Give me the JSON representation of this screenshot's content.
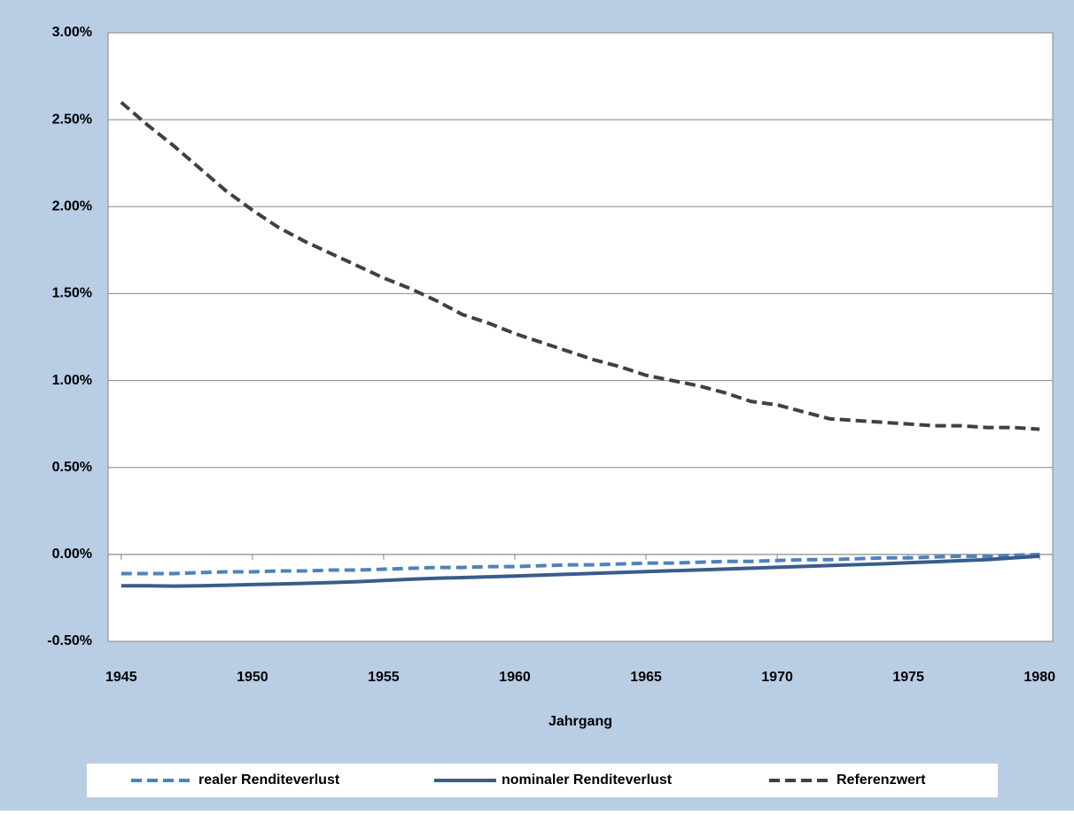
{
  "chart_data": {
    "type": "line",
    "x_label": "Jahrgang",
    "x": [
      1945,
      1946,
      1947,
      1948,
      1949,
      1950,
      1951,
      1952,
      1953,
      1954,
      1955,
      1956,
      1957,
      1958,
      1959,
      1960,
      1961,
      1962,
      1963,
      1964,
      1965,
      1966,
      1967,
      1968,
      1969,
      1970,
      1971,
      1972,
      1973,
      1974,
      1975,
      1976,
      1977,
      1978,
      1979,
      1980
    ],
    "xlim": [
      1944.5,
      1980.5
    ],
    "xticks": [
      1945,
      1950,
      1955,
      1960,
      1965,
      1970,
      1975,
      1980
    ],
    "ylim": [
      -0.5,
      3
    ],
    "yticks": [
      {
        "value": -0.5,
        "label": "-0.50%"
      },
      {
        "value": 0,
        "label": "0.00%"
      },
      {
        "value": 0.5,
        "label": "0.50%"
      },
      {
        "value": 1,
        "label": "1.00%"
      },
      {
        "value": 1.5,
        "label": "1.50%"
      },
      {
        "value": 2,
        "label": "2.00%"
      },
      {
        "value": 2.5,
        "label": "2.50%"
      },
      {
        "value": 3,
        "label": "3.00%"
      }
    ],
    "grid": true,
    "legend": "bottom",
    "series": [
      {
        "name": "realer Renditeverlust",
        "color": "#4f81bd",
        "line_style": "dashed",
        "values": [
          -0.11,
          -0.11,
          -0.11,
          -0.105,
          -0.1,
          -0.1,
          -0.095,
          -0.095,
          -0.09,
          -0.09,
          -0.085,
          -0.08,
          -0.075,
          -0.075,
          -0.07,
          -0.07,
          -0.065,
          -0.06,
          -0.06,
          -0.055,
          -0.05,
          -0.05,
          -0.045,
          -0.04,
          -0.04,
          -0.035,
          -0.03,
          -0.03,
          -0.025,
          -0.02,
          -0.02,
          -0.015,
          -0.01,
          -0.01,
          -0.005,
          0
        ]
      },
      {
        "name": "nominaler Renditeverlust",
        "color": "#385d8a",
        "line_style": "solid",
        "values": [
          -0.18,
          -0.18,
          -0.182,
          -0.18,
          -0.177,
          -0.173,
          -0.17,
          -0.166,
          -0.162,
          -0.157,
          -0.15,
          -0.143,
          -0.137,
          -0.133,
          -0.129,
          -0.124,
          -0.119,
          -0.114,
          -0.109,
          -0.104,
          -0.099,
          -0.094,
          -0.089,
          -0.084,
          -0.079,
          -0.074,
          -0.069,
          -0.064,
          -0.059,
          -0.054,
          -0.048,
          -0.042,
          -0.036,
          -0.03,
          -0.02,
          -0.01
        ]
      },
      {
        "name": "Referenzwert",
        "color": "#404040",
        "line_style": "dashed",
        "values": [
          2.6,
          2.47,
          2.35,
          2.22,
          2.09,
          1.98,
          1.88,
          1.8,
          1.73,
          1.66,
          1.59,
          1.53,
          1.46,
          1.38,
          1.33,
          1.27,
          1.22,
          1.17,
          1.12,
          1.08,
          1.03,
          1.0,
          0.97,
          0.93,
          0.88,
          0.86,
          0.82,
          0.78,
          0.77,
          0.76,
          0.75,
          0.74,
          0.74,
          0.73,
          0.73,
          0.72
        ]
      }
    ]
  }
}
